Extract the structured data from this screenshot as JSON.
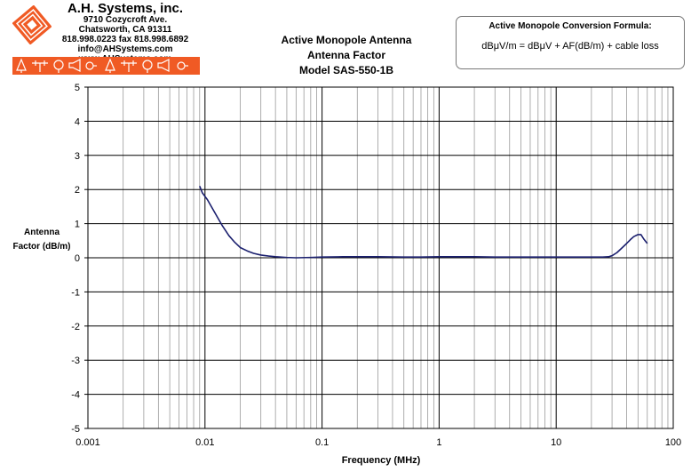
{
  "company": {
    "name": "A.H. Systems, inc.",
    "address": "9710 Cozycroft Ave.",
    "city": "Chatsworth, CA 91311",
    "phone": "818.998.0223 fax 818.998.6892",
    "web": "info@AHSystems.com www.AHSystems.com",
    "banner_color": "#f05a24"
  },
  "formula": {
    "title": "Active Monopole Conversion Formula:",
    "text": "dBμV/m = dBμV + AF(dB/m) + cable loss"
  },
  "chart_data": {
    "type": "line",
    "title": [
      "Active Monopole Antenna",
      "Antenna Factor",
      "Model SAS-550-1B"
    ],
    "xlabel": "Frequency (MHz)",
    "ylabel": [
      "Antenna",
      "Factor (dB/m)"
    ],
    "x_scale": "log",
    "xlim": [
      0.001,
      100
    ],
    "ylim": [
      -5,
      5
    ],
    "x_ticks": [
      "0.001",
      "0.01",
      "0.1",
      "1",
      "10",
      "100"
    ],
    "y_ticks": [
      "5",
      "4",
      "3",
      "2",
      "1",
      "0",
      "-1",
      "-2",
      "-3",
      "-4",
      "-5"
    ],
    "grid": true,
    "line_color": "#1a1f6e",
    "series": [
      {
        "x": [
          0.009,
          0.0095,
          0.0105,
          0.012,
          0.014,
          0.016,
          0.018,
          0.02,
          0.023,
          0.026,
          0.03,
          0.035,
          0.04,
          0.05,
          0.06,
          0.08,
          0.1,
          0.15,
          0.2,
          0.3,
          0.5,
          0.7,
          1,
          2,
          3,
          5,
          7,
          10,
          15,
          20,
          25,
          28,
          30,
          33,
          36,
          40,
          43,
          46,
          50,
          53,
          56,
          60
        ],
        "y": [
          2.1,
          1.9,
          1.7,
          1.35,
          0.95,
          0.65,
          0.45,
          0.3,
          0.2,
          0.13,
          0.08,
          0.05,
          0.03,
          0.01,
          0.0,
          0.01,
          0.02,
          0.03,
          0.03,
          0.03,
          0.02,
          0.02,
          0.03,
          0.03,
          0.02,
          0.02,
          0.02,
          0.02,
          0.02,
          0.02,
          0.02,
          0.03,
          0.06,
          0.15,
          0.27,
          0.42,
          0.53,
          0.62,
          0.68,
          0.68,
          0.55,
          0.42
        ]
      }
    ]
  }
}
